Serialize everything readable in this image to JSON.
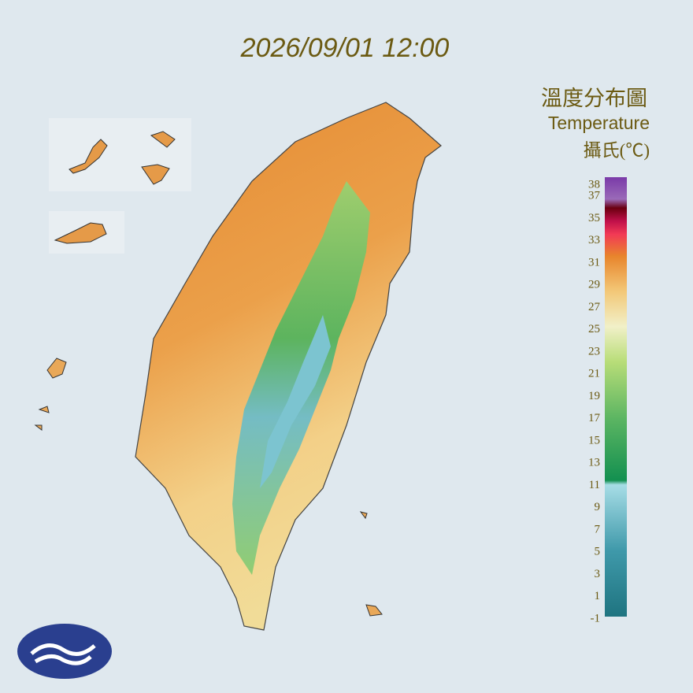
{
  "header": {
    "timestamp": "2026/09/01 12:00",
    "title": "溫度分布圖",
    "subtitle": "Temperature",
    "unit": "攝氏(℃)"
  },
  "legend": {
    "labels": [
      38,
      37,
      35,
      33,
      31,
      29,
      27,
      25,
      23,
      21,
      19,
      17,
      15,
      13,
      11,
      9,
      7,
      5,
      3,
      1,
      -1
    ]
  }
}
